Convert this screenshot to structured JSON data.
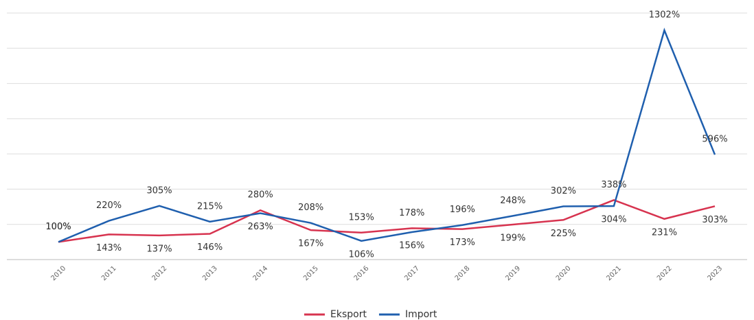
{
  "chart_data": {
    "type": "line",
    "categories": [
      "2010",
      "2011",
      "2012",
      "2013",
      "2014",
      "2015",
      "2016",
      "2017",
      "2018",
      "2019",
      "2020",
      "2021",
      "2022",
      "2023"
    ],
    "series": [
      {
        "name": "Eksport",
        "color": "#d7334f",
        "values": [
          100,
          143,
          137,
          146,
          280,
          167,
          153,
          178,
          173,
          199,
          225,
          338,
          231,
          303
        ],
        "value_labels": [
          "100%",
          "143%",
          "137%",
          "146%",
          "280%",
          "167%",
          "153%",
          "178%",
          "173%",
          "199%",
          "225%",
          "338%",
          "231%",
          "303%"
        ]
      },
      {
        "name": "Import",
        "color": "#1f5fae",
        "values": [
          100,
          220,
          305,
          215,
          263,
          208,
          106,
          156,
          196,
          248,
          302,
          304,
          1302,
          596
        ],
        "value_labels": [
          "100%",
          "220%",
          "305%",
          "215%",
          "263%",
          "208%",
          "106%",
          "156%",
          "196%",
          "248%",
          "302%",
          "304%",
          "1302%",
          "596%"
        ]
      }
    ],
    "ylim": [
      0,
      1400
    ],
    "grid_values": [
      0,
      200,
      400,
      600,
      800,
      1000,
      1200,
      1400
    ],
    "legend": "bottom"
  }
}
